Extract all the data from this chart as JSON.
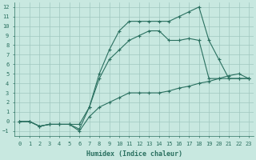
{
  "bg_color": "#c8e8e0",
  "grid_color": "#a0c8c0",
  "line_color": "#2a7060",
  "xlabel": "Humidex (Indice chaleur)",
  "xlim": [
    -0.5,
    23.5
  ],
  "ylim": [
    -1.5,
    12.5
  ],
  "xticks": [
    0,
    1,
    2,
    3,
    4,
    5,
    6,
    7,
    8,
    9,
    10,
    11,
    12,
    13,
    14,
    15,
    16,
    17,
    18,
    19,
    20,
    21,
    22,
    23
  ],
  "yticks": [
    -1,
    0,
    1,
    2,
    3,
    4,
    5,
    6,
    7,
    8,
    9,
    10,
    11,
    12
  ],
  "line1_x": [
    0,
    1,
    2,
    3,
    4,
    5,
    6,
    7,
    8,
    9,
    10,
    11,
    12,
    13,
    14,
    15,
    16,
    17,
    18,
    19,
    20,
    21,
    22,
    23
  ],
  "line1_y": [
    0,
    0,
    -0.5,
    -0.3,
    -0.3,
    -0.3,
    -1.0,
    0.5,
    1.5,
    2.0,
    2.5,
    3.0,
    3.0,
    3.0,
    3.0,
    3.2,
    3.5,
    3.7,
    4.0,
    4.2,
    4.5,
    4.8,
    5.0,
    4.5
  ],
  "line2_x": [
    0,
    1,
    2,
    3,
    4,
    5,
    6,
    7,
    8,
    9,
    10,
    11,
    12,
    13,
    14,
    15,
    16,
    17,
    18,
    19,
    20,
    21,
    22,
    23
  ],
  "line2_y": [
    0,
    0,
    -0.5,
    -0.3,
    -0.3,
    -0.3,
    -0.3,
    1.5,
    4.5,
    6.5,
    7.5,
    8.5,
    9.0,
    9.5,
    9.5,
    8.5,
    8.5,
    8.7,
    8.5,
    4.5,
    4.5,
    4.5,
    4.5,
    4.5
  ],
  "line3_x": [
    0,
    1,
    2,
    3,
    4,
    5,
    6,
    7,
    8,
    9,
    10,
    11,
    12,
    13,
    14,
    15,
    16,
    17,
    18,
    19,
    20,
    21,
    22,
    23
  ],
  "line3_y": [
    0,
    0,
    -0.5,
    -0.3,
    -0.3,
    -0.3,
    -0.8,
    1.5,
    5.0,
    7.5,
    9.5,
    10.5,
    10.5,
    10.5,
    10.5,
    10.5,
    11.0,
    11.5,
    12.0,
    8.5,
    6.5,
    4.5,
    4.5,
    4.5
  ]
}
